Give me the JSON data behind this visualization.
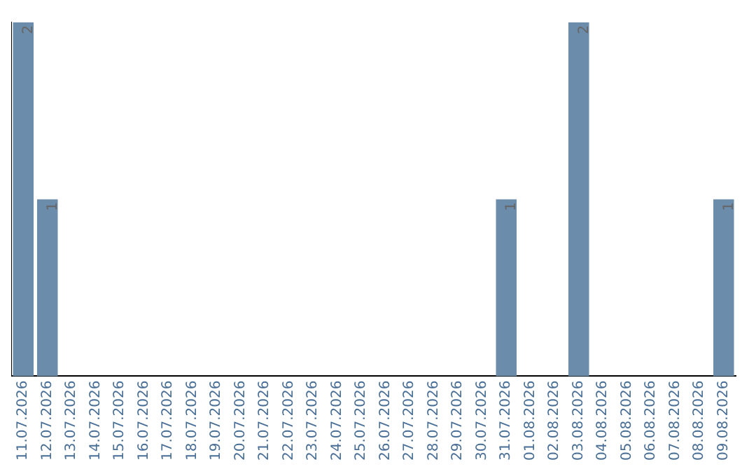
{
  "chart_data": {
    "type": "bar",
    "categories": [
      "11.07.2026",
      "12.07.2026",
      "13.07.2026",
      "14.07.2026",
      "15.07.2026",
      "16.07.2026",
      "17.07.2026",
      "18.07.2026",
      "19.07.2026",
      "20.07.2026",
      "21.07.2026",
      "22.07.2026",
      "23.07.2026",
      "24.07.2026",
      "25.07.2026",
      "26.07.2026",
      "27.07.2026",
      "28.07.2026",
      "29.07.2026",
      "30.07.2026",
      "31.07.2026",
      "01.08.2026",
      "02.08.2026",
      "03.08.2026",
      "04.08.2026",
      "05.08.2026",
      "06.08.2026",
      "07.08.2026",
      "08.08.2026",
      "09.08.2026"
    ],
    "values": [
      2,
      1,
      0,
      0,
      0,
      0,
      0,
      0,
      0,
      0,
      0,
      0,
      0,
      0,
      0,
      0,
      0,
      0,
      0,
      0,
      1,
      0,
      0,
      2,
      0,
      0,
      0,
      0,
      0,
      1
    ],
    "value_labels": [
      "2",
      "1",
      null,
      null,
      null,
      null,
      null,
      null,
      null,
      null,
      null,
      null,
      null,
      null,
      null,
      null,
      null,
      null,
      null,
      null,
      "1",
      null,
      null,
      "2",
      null,
      null,
      null,
      null,
      null,
      "1"
    ],
    "color": "#6b8cab",
    "tick_labels": "x",
    "grid": false,
    "legend": false
  }
}
